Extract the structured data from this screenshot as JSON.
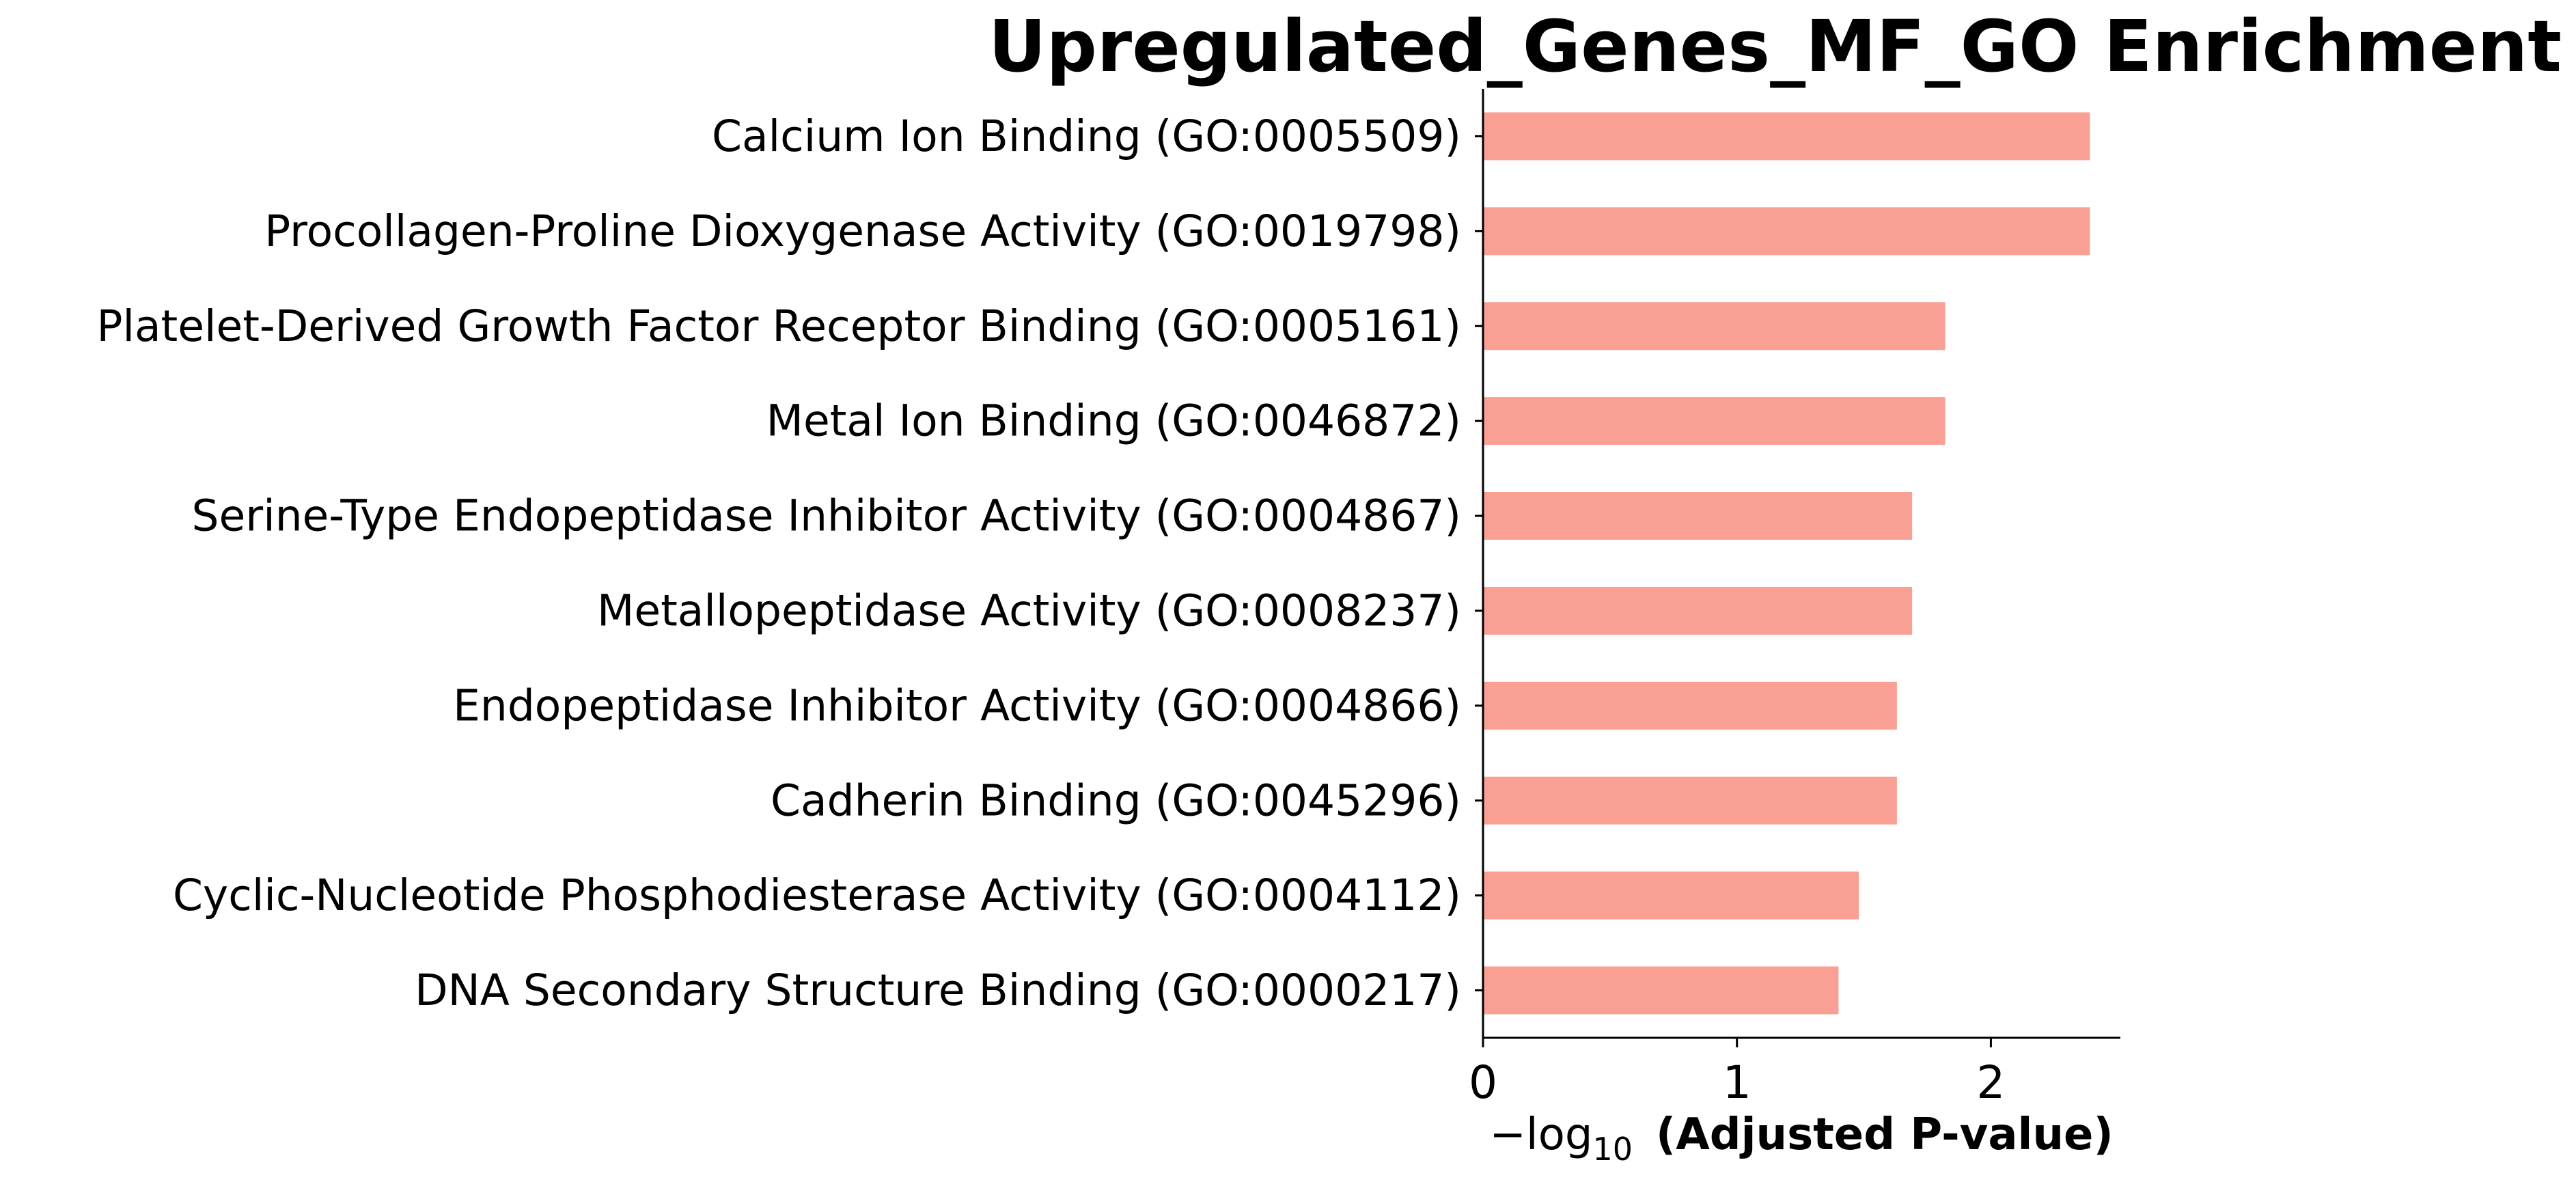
{
  "chart_data": {
    "type": "bar",
    "orientation": "horizontal",
    "title": "Upregulated_Genes_MF_GO Enrichment",
    "xlabel_prefix": "−log",
    "xlabel_subscript": "10",
    "xlabel_main": "(Adjusted P-value)",
    "ylabel": "",
    "categories": [
      "Calcium Ion Binding (GO:0005509)",
      "Procollagen-Proline Dioxygenase Activity (GO:0019798)",
      "Platelet-Derived Growth Factor Receptor Binding (GO:0005161)",
      "Metal Ion Binding (GO:0046872)",
      "Serine-Type Endopeptidase Inhibitor Activity (GO:0004867)",
      "Metallopeptidase Activity (GO:0008237)",
      "Endopeptidase Inhibitor Activity (GO:0004866)",
      "Cadherin Binding (GO:0045296)",
      "Cyclic-Nucleotide Phosphodiesterase Activity (GO:0004112)",
      "DNA Secondary Structure Binding (GO:0000217)"
    ],
    "values": [
      2.39,
      2.39,
      1.82,
      1.82,
      1.69,
      1.69,
      1.63,
      1.63,
      1.48,
      1.4
    ],
    "xlim": [
      0,
      2.51
    ],
    "xticks": [
      0,
      1,
      2
    ],
    "grid": false,
    "legend": "none",
    "bar_color": "#fa9f94",
    "axis_color": "#000000"
  }
}
